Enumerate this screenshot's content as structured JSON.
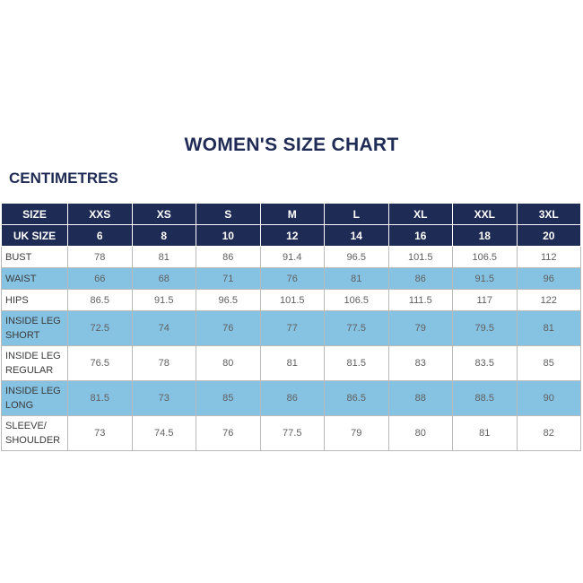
{
  "title": "WOMEN'S SIZE CHART",
  "unit": "CENTIMETRES",
  "header_rows": [
    {
      "label": "SIZE",
      "values": [
        "XXS",
        "XS",
        "S",
        "M",
        "L",
        "XL",
        "XXL",
        "3XL"
      ]
    },
    {
      "label": "UK SIZE",
      "values": [
        "6",
        "8",
        "10",
        "12",
        "14",
        "16",
        "18",
        "20"
      ]
    }
  ],
  "rows": [
    {
      "label": "BUST",
      "values": [
        "78",
        "81",
        "86",
        "91.4",
        "96.5",
        "101.5",
        "106.5",
        "112"
      ],
      "highlight": false
    },
    {
      "label": "WAIST",
      "values": [
        "66",
        "68",
        "71",
        "76",
        "81",
        "86",
        "91.5",
        "96"
      ],
      "highlight": true
    },
    {
      "label": "HIPS",
      "values": [
        "86.5",
        "91.5",
        "96.5",
        "101.5",
        "106.5",
        "111.5",
        "117",
        "122"
      ],
      "highlight": false
    },
    {
      "label": "INSIDE LEG SHORT",
      "values": [
        "72.5",
        "74",
        "76",
        "77",
        "77.5",
        "79",
        "79.5",
        "81"
      ],
      "highlight": true
    },
    {
      "label": "INSIDE LEG REGULAR",
      "values": [
        "76.5",
        "78",
        "80",
        "81",
        "81.5",
        "83",
        "83.5",
        "85"
      ],
      "highlight": false
    },
    {
      "label": "INSIDE LEG LONG",
      "values": [
        "81.5",
        "73",
        "85",
        "86",
        "86.5",
        "88",
        "88.5",
        "90"
      ],
      "highlight": true
    },
    {
      "label": "SLEEVE/ SHOULDER",
      "values": [
        "73",
        "74.5",
        "76",
        "77.5",
        "79",
        "80",
        "81",
        "82"
      ],
      "highlight": false
    }
  ],
  "colors": {
    "navy": "#1e2b55",
    "highlight": "#86c3e3"
  }
}
